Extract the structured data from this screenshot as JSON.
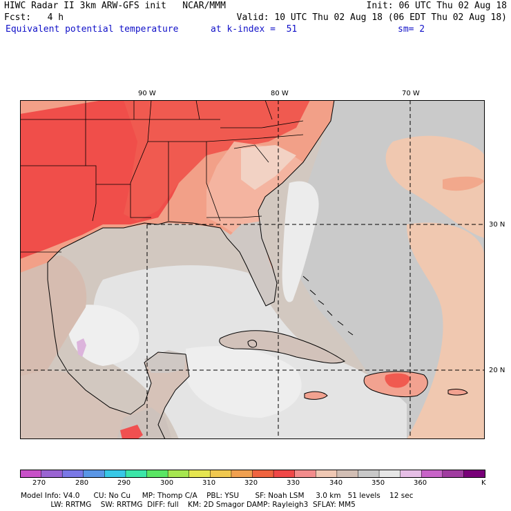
{
  "header": {
    "line1_left": "HIWC Radar II 3km ARW-GFS init   NCAR/MMM",
    "line1_right": "Init: 06 UTC Thu 02 Aug 18",
    "line2_left": "Fcst:   4 h",
    "line2_right": "Valid: 10 UTC Thu 02 Aug 18 (06 EDT Thu 02 Aug 18)",
    "field_name": "Equivalent potential temperature",
    "level": "at k-index =  51",
    "smoothing": "sm= 2"
  },
  "map": {
    "lon_labels": [
      "90 W",
      "80 W",
      "70 W"
    ],
    "lat_labels": [
      "30 N",
      "20 N"
    ]
  },
  "colorbar": {
    "colors": [
      "#c850c8",
      "#9a64d2",
      "#7a78e6",
      "#5a96e6",
      "#38c8e6",
      "#3ce6a8",
      "#5ae664",
      "#a6e650",
      "#e6e650",
      "#f0c850",
      "#f0a050",
      "#f06440",
      "#f04848",
      "#f28c8c",
      "#f0c8b4",
      "#d2beb4",
      "#c8c8c8",
      "#e6e6e6",
      "#e6bee6",
      "#c864c8",
      "#a03ca0",
      "#780078"
    ],
    "tick_labels": [
      "270",
      "280",
      "290",
      "300",
      "310",
      "320",
      "330",
      "340",
      "350",
      "360",
      "K"
    ]
  },
  "footer": {
    "line1": "Model Info: V4.0      CU: No Cu     MP: Thomp C/A    PBL: YSU       SF: Noah LSM     3.0 km   51 levels    12 sec",
    "line2": "             LW: RRTMG    SW: RRTMG  DIFF: full    KM: 2D Smagor DAMP: Rayleigh3  SFLAY: MM5"
  }
}
